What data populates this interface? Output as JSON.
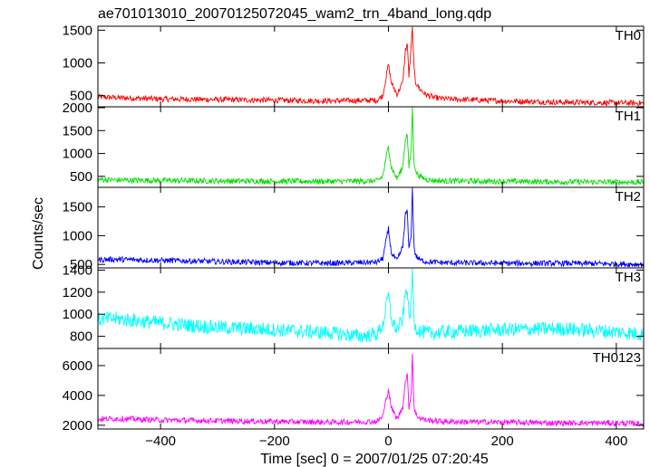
{
  "title": "ae701013010_20070125072045_wam2_trn_4band_long.qdp",
  "ylabel": "Counts/sec",
  "xlabel": "Time [sec] 0 = 2007/01/25 07:20:45",
  "chart_data": {
    "type": "line",
    "xlim": [
      -510,
      448
    ],
    "x_ticks": [
      -400,
      -200,
      0,
      200,
      400
    ],
    "grid": false,
    "panels": [
      {
        "name": "TH0",
        "color": "#ff0000",
        "ylim": [
          330,
          1560
        ],
        "y_ticks": [
          500,
          1000,
          1500
        ],
        "series": [
          {
            "x": [
              -510,
              -480,
              -400,
              -300,
              -200,
              -100,
              -20,
              -10,
              0,
              5,
              15,
              25,
              30,
              33,
              36,
              40,
              42,
              45,
              48,
              55,
              65,
              80,
              100,
              200,
              300,
              400,
              448
            ],
            "y": [
              480,
              470,
              450,
              440,
              430,
              420,
              430,
              500,
              980,
              700,
              520,
              700,
              1200,
              1300,
              800,
              1250,
              1530,
              900,
              700,
              600,
              520,
              470,
              450,
              420,
              400,
              390,
              385
            ]
          }
        ]
      },
      {
        "name": "TH1",
        "color": "#00e000",
        "ylim": [
          260,
          2020
        ],
        "y_ticks": [
          500,
          1000,
          1500,
          2000
        ],
        "series": [
          {
            "x": [
              -510,
              -480,
              -400,
              -300,
              -200,
              -100,
              -20,
              -10,
              0,
              5,
              15,
              25,
              30,
              33,
              36,
              40,
              42,
              45,
              48,
              55,
              65,
              80,
              100,
              200,
              300,
              400,
              448
            ],
            "y": [
              430,
              420,
              410,
              400,
              395,
              390,
              400,
              500,
              1170,
              700,
              450,
              700,
              1350,
              1420,
              700,
              1100,
              1980,
              800,
              600,
              500,
              440,
              410,
              400,
              390,
              380,
              375,
              370
            ]
          }
        ]
      },
      {
        "name": "TH2",
        "color": "#0000ff",
        "ylim": [
          440,
          1840
        ],
        "y_ticks": [
          500,
          1000,
          1500
        ],
        "series": [
          {
            "x": [
              -510,
              -480,
              -400,
              -300,
              -200,
              -100,
              -20,
              -10,
              0,
              5,
              15,
              25,
              30,
              33,
              36,
              40,
              42,
              45,
              48,
              55,
              65,
              80,
              100,
              200,
              300,
              400,
              448
            ],
            "y": [
              580,
              590,
              570,
              550,
              530,
              520,
              540,
              600,
              1120,
              700,
              560,
              800,
              1380,
              1430,
              750,
              1050,
              1820,
              800,
              650,
              580,
              550,
              540,
              530,
              520,
              520,
              510,
              500
            ]
          }
        ]
      },
      {
        "name": "TH3",
        "color": "#00ffff",
        "ylim": [
          690,
          1420
        ],
        "y_ticks": [
          800,
          1000,
          1200,
          1400
        ],
        "series": [
          {
            "x": [
              -510,
              -480,
              -400,
              -300,
              -200,
              -100,
              -50,
              -20,
              -10,
              0,
              5,
              15,
              25,
              30,
              33,
              36,
              40,
              42,
              45,
              48,
              55,
              65,
              80,
              100,
              200,
              300,
              400,
              448
            ],
            "y": [
              950,
              960,
              920,
              880,
              860,
              830,
              800,
              820,
              900,
              1180,
              950,
              860,
              950,
              1200,
              1250,
              950,
              1100,
              1410,
              950,
              880,
              850,
              830,
              830,
              840,
              860,
              870,
              840,
              820
            ]
          }
        ]
      },
      {
        "name": "TH0123",
        "color": "#ff00ff",
        "ylim": [
          1750,
          7150
        ],
        "y_ticks": [
          2000,
          4000,
          6000
        ],
        "series": [
          {
            "x": [
              -510,
              -480,
              -400,
              -300,
              -200,
              -100,
              -20,
              -10,
              0,
              5,
              15,
              25,
              30,
              33,
              36,
              40,
              42,
              45,
              48,
              55,
              65,
              80,
              100,
              200,
              300,
              400,
              448
            ],
            "y": [
              2400,
              2450,
              2350,
              2300,
              2250,
              2200,
              2250,
              2600,
              4450,
              3200,
              2400,
              3200,
              5000,
              5400,
              3200,
              4200,
              6800,
              3200,
              2700,
              2500,
              2350,
              2300,
              2250,
              2200,
              2150,
              2150,
              2100
            ]
          }
        ]
      }
    ]
  }
}
